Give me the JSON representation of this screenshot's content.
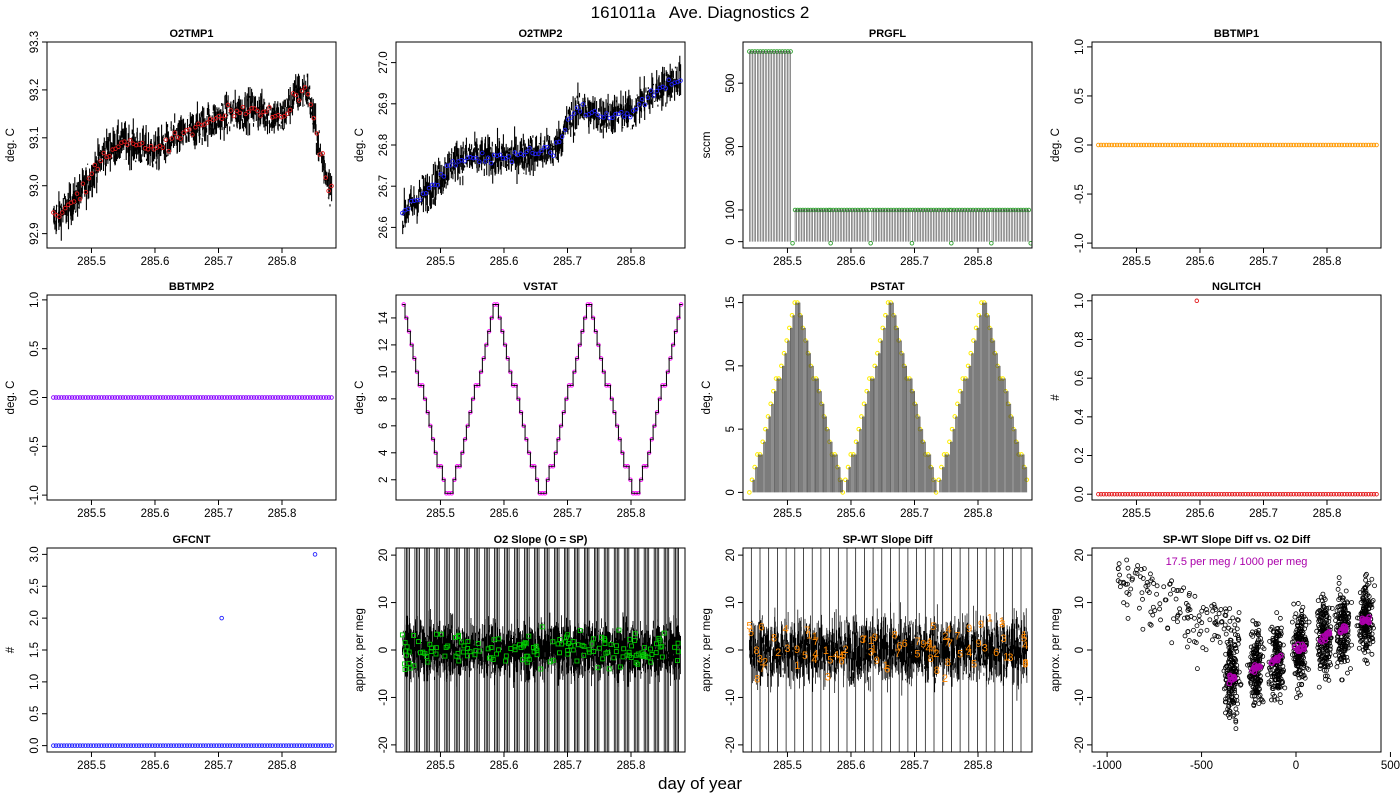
{
  "page": {
    "title": "161011a   Ave. Diagnostics 2",
    "xlabel": "day of year"
  },
  "colors": {
    "red": "#e41a1c",
    "blue": "#2020ff",
    "green": "#2ca02c",
    "orange": "#ff9900",
    "purple": "#8800ff",
    "magenta": "#ff00ff",
    "yellow": "#ffee00",
    "bright_green": "#00cc00",
    "num_orange": "#ff8800",
    "annot": "#aa00aa"
  },
  "chart_data": [
    {
      "id": "o2tmp1",
      "type": "line",
      "title": "O2TMP1",
      "ylabel": "deg. C",
      "xlim": [
        285.43,
        285.885
      ],
      "ylim": [
        92.87,
        93.3
      ],
      "xticks": [
        285.5,
        285.6,
        285.7,
        285.8
      ],
      "xtick_labels": [
        "285.5",
        "285.6",
        "285.7",
        "285.8"
      ],
      "yticks": [
        92.9,
        93.0,
        93.1,
        93.2,
        93.3
      ],
      "ytick_labels": [
        "92.9",
        "93.0",
        "93.1",
        "93.2",
        "93.3"
      ],
      "trend_x": [
        285.44,
        285.46,
        285.48,
        285.5,
        285.52,
        285.55,
        285.58,
        285.6,
        285.62,
        285.65,
        285.68,
        285.7,
        285.72,
        285.75,
        285.78,
        285.8,
        285.82,
        285.84,
        285.86,
        285.875
      ],
      "trend_y": [
        92.93,
        92.95,
        92.98,
        93.02,
        93.07,
        93.09,
        93.08,
        93.07,
        93.09,
        93.11,
        93.13,
        93.14,
        93.15,
        93.16,
        93.15,
        93.14,
        93.19,
        93.2,
        93.07,
        93.0
      ],
      "noise": 0.06,
      "marker_color": "red",
      "marker": "circle",
      "line": "dense"
    },
    {
      "id": "o2tmp2",
      "type": "line",
      "title": "O2TMP2",
      "ylabel": "deg. C",
      "xlim": [
        285.43,
        285.885
      ],
      "ylim": [
        26.55,
        27.05
      ],
      "xticks": [
        285.5,
        285.6,
        285.7,
        285.8
      ],
      "xtick_labels": [
        "285.5",
        "285.6",
        "285.7",
        "285.8"
      ],
      "yticks": [
        26.6,
        26.7,
        26.8,
        26.9,
        27.0
      ],
      "ytick_labels": [
        "26.6",
        "26.7",
        "26.8",
        "26.9",
        "27.0"
      ],
      "trend_x": [
        285.44,
        285.46,
        285.48,
        285.5,
        285.52,
        285.55,
        285.6,
        285.65,
        285.68,
        285.7,
        285.72,
        285.75,
        285.8,
        285.83,
        285.86,
        285.875
      ],
      "trend_y": [
        26.63,
        26.66,
        26.69,
        26.72,
        26.76,
        26.77,
        26.77,
        26.78,
        26.79,
        26.85,
        26.89,
        26.87,
        26.88,
        26.92,
        26.95,
        26.96
      ],
      "noise": 0.07,
      "marker_color": "blue",
      "marker": "circle",
      "line": "dense"
    },
    {
      "id": "prgfl",
      "type": "line",
      "title": "PRGFL",
      "ylabel": "sccm",
      "xlim": [
        285.43,
        285.885
      ],
      "ylim": [
        -20,
        630
      ],
      "xticks": [
        285.5,
        285.6,
        285.7,
        285.8
      ],
      "xtick_labels": [
        "285.5",
        "285.6",
        "285.7",
        "285.8"
      ],
      "yticks": [
        0,
        100,
        300,
        500
      ],
      "ytick_labels": [
        "0",
        "100",
        "300",
        "500"
      ],
      "segments": [
        [
          285.44,
          285.505,
          600
        ],
        [
          285.512,
          285.565,
          100
        ],
        [
          285.568,
          285.628,
          100
        ],
        [
          285.633,
          285.693,
          100
        ],
        [
          285.697,
          285.755,
          100
        ],
        [
          285.758,
          285.818,
          100
        ],
        [
          285.822,
          285.88,
          100
        ]
      ],
      "marker_color": "green",
      "marker": "circle",
      "line": "spike"
    },
    {
      "id": "bbtmp1",
      "type": "line",
      "title": "BBTMP1",
      "ylabel": "deg. C",
      "xlim": [
        285.43,
        285.885
      ],
      "ylim": [
        -1.05,
        1.05
      ],
      "xticks": [
        285.5,
        285.6,
        285.7,
        285.8
      ],
      "xtick_labels": [
        "285.5",
        "285.6",
        "285.7",
        "285.8"
      ],
      "yticks": [
        -1.0,
        -0.5,
        0.0,
        0.5,
        1.0
      ],
      "ytick_labels": [
        "-1.0",
        "-0.5",
        "0.0",
        "0.5",
        "1.0"
      ],
      "const": 0,
      "marker_color": "orange",
      "marker": "circle",
      "line": "none"
    },
    {
      "id": "bbtmp2",
      "type": "line",
      "title": "BBTMP2",
      "ylabel": "deg. C",
      "xlim": [
        285.43,
        285.885
      ],
      "ylim": [
        -1.05,
        1.05
      ],
      "xticks": [
        285.5,
        285.6,
        285.7,
        285.8
      ],
      "xtick_labels": [
        "285.5",
        "285.6",
        "285.7",
        "285.8"
      ],
      "yticks": [
        -1.0,
        -0.5,
        0.0,
        0.5,
        1.0
      ],
      "ytick_labels": [
        "-1.0",
        "-0.5",
        "0.0",
        "0.5",
        "1.0"
      ],
      "const": 0,
      "marker_color": "purple",
      "marker": "circle",
      "line": "none"
    },
    {
      "id": "vstat",
      "type": "line",
      "title": "VSTAT",
      "ylabel": "deg. C",
      "xlim": [
        285.43,
        285.885
      ],
      "ylim": [
        0.5,
        15.7
      ],
      "xticks": [
        285.5,
        285.6,
        285.7,
        285.8
      ],
      "xtick_labels": [
        "285.5",
        "285.6",
        "285.7",
        "285.8"
      ],
      "yticks": [
        2,
        4,
        6,
        8,
        10,
        12,
        14
      ],
      "ytick_labels": [
        "2",
        "4",
        "6",
        "8",
        "10",
        "12",
        "14"
      ],
      "cycle": {
        "start": 285.44,
        "period": 0.146,
        "step": 0.0042,
        "phase": 0.5
      },
      "marker_color": "magenta",
      "marker": "circle",
      "line": "step"
    },
    {
      "id": "pstat",
      "type": "line",
      "title": "PSTAT",
      "ylabel": "deg. C",
      "xlim": [
        285.43,
        285.885
      ],
      "ylim": [
        -0.6,
        15.6
      ],
      "xticks": [
        285.5,
        285.6,
        285.7,
        285.8
      ],
      "xtick_labels": [
        "285.5",
        "285.6",
        "285.7",
        "285.8"
      ],
      "yticks": [
        0,
        5,
        10,
        15
      ],
      "ytick_labels": [
        "0",
        "5",
        "10",
        "15"
      ],
      "cycle": {
        "start": 285.44,
        "period": 0.146,
        "step": 0.0042,
        "phase": 0
      },
      "marker_color": "yellow",
      "marker": "circle",
      "line": "spike"
    },
    {
      "id": "nglitch",
      "type": "scatter",
      "title": "NGLITCH",
      "ylabel": "#",
      "xlim": [
        285.43,
        285.885
      ],
      "ylim": [
        -0.03,
        1.03
      ],
      "xticks": [
        285.5,
        285.6,
        285.7,
        285.8
      ],
      "xtick_labels": [
        "285.5",
        "285.6",
        "285.7",
        "285.8"
      ],
      "yticks": [
        0.0,
        0.2,
        0.4,
        0.6,
        0.8,
        1.0
      ],
      "ytick_labels": [
        "0.0",
        "0.2",
        "0.4",
        "0.6",
        "0.8",
        "1.0"
      ],
      "const": 0,
      "outliers": [
        [
          285.595,
          1
        ]
      ],
      "marker_color": "red",
      "marker": "circle",
      "line": "none"
    },
    {
      "id": "gfcnt",
      "type": "scatter",
      "title": "GFCNT",
      "ylabel": "#",
      "xlim": [
        285.43,
        285.885
      ],
      "ylim": [
        -0.1,
        3.1
      ],
      "xticks": [
        285.5,
        285.6,
        285.7,
        285.8
      ],
      "xtick_labels": [
        "285.5",
        "285.6",
        "285.7",
        "285.8"
      ],
      "yticks": [
        0.0,
        0.5,
        1.0,
        1.5,
        2.0,
        2.5,
        3.0
      ],
      "ytick_labels": [
        "0.0",
        "0.5",
        "1.0",
        "1.5",
        "2.0",
        "2.5",
        "3.0"
      ],
      "const": 0,
      "outliers": [
        [
          285.705,
          2
        ],
        [
          285.852,
          3
        ]
      ],
      "marker_color": "blue",
      "marker": "circle",
      "line": "none"
    },
    {
      "id": "o2slope",
      "type": "line",
      "title": "O2 Slope (O = SP)",
      "ylabel": "approx. per meg",
      "xlim": [
        285.43,
        285.885
      ],
      "ylim": [
        -21.5,
        21.5
      ],
      "xticks": [
        285.5,
        285.6,
        285.7,
        285.8
      ],
      "xtick_labels": [
        "285.5",
        "285.6",
        "285.7",
        "285.8"
      ],
      "yticks": [
        -20,
        -10,
        0,
        10,
        20
      ],
      "ytick_labels": [
        "-20",
        "-10",
        "0",
        "10",
        "20"
      ],
      "noise": 4,
      "marker_color": "bright_green",
      "marker": "square",
      "line": "noise_bars"
    },
    {
      "id": "spwt",
      "type": "line",
      "title": "SP-WT Slope Diff",
      "ylabel": "approx. per meg",
      "xlim": [
        285.43,
        285.885
      ],
      "ylim": [
        -21.5,
        21.5
      ],
      "xticks": [
        285.5,
        285.6,
        285.7,
        285.8
      ],
      "xtick_labels": [
        "285.5",
        "285.6",
        "285.7",
        "285.8"
      ],
      "yticks": [
        -20,
        -10,
        0,
        10,
        20
      ],
      "ytick_labels": [
        "-20",
        "-10",
        "0",
        "10",
        "20"
      ],
      "noise": 7,
      "marker_color": "num_orange",
      "marker": "number",
      "line": "noise_spikes"
    },
    {
      "id": "spwt_vs_o2",
      "type": "scatter",
      "title": "SP-WT Slope Diff vs. O2 Diff",
      "ylabel": "approx. per meg",
      "xlim": [
        -1080,
        450
      ],
      "ylim": [
        -21.5,
        21.5
      ],
      "xticks": [
        -1000,
        -500,
        0,
        500
      ],
      "xtick_labels": [
        "-1000",
        "-500",
        "0",
        "500"
      ],
      "yticks": [
        -20,
        -10,
        0,
        10,
        20
      ],
      "ytick_labels": [
        "-20",
        "-10",
        "0",
        "10",
        "20"
      ],
      "annotation": "17.5 per meg / 1000 per meg",
      "clusters": [
        -340,
        -210,
        -100,
        20,
        150,
        250,
        370
      ],
      "marker_color": "annot",
      "marker": "circle"
    }
  ]
}
